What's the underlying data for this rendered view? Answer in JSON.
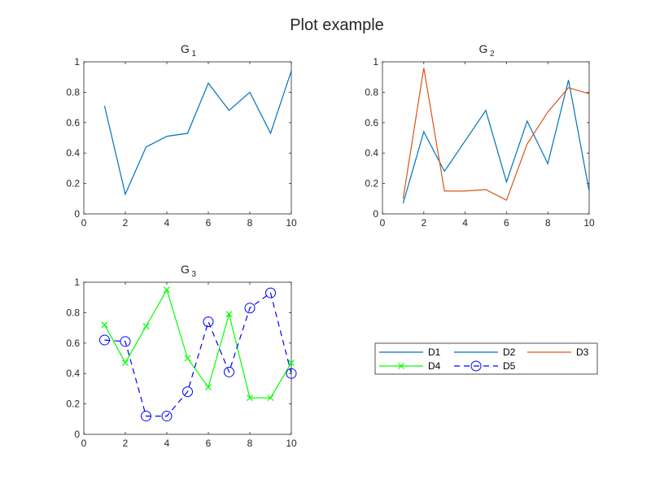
{
  "figure": {
    "title": "Plot example"
  },
  "legend": {
    "placement": "lower-right",
    "columns": 3,
    "entries": [
      {
        "label": "D1",
        "color": "#0072BD",
        "line": "solid",
        "marker": "none"
      },
      {
        "label": "D2",
        "color": "#0072BD",
        "line": "solid",
        "marker": "none"
      },
      {
        "label": "D3",
        "color": "#D95319",
        "line": "solid",
        "marker": "none"
      },
      {
        "label": "D4",
        "color": "#00FF00",
        "line": "solid",
        "marker": "x"
      },
      {
        "label": "D5",
        "color": "#0000FF",
        "line": "dashed",
        "marker": "o"
      }
    ]
  },
  "chart_data": [
    {
      "type": "line",
      "title": "G",
      "title_sub": "1",
      "xlim": [
        0,
        10
      ],
      "ylim": [
        0,
        1
      ],
      "xticks": [
        "0",
        "2",
        "4",
        "6",
        "8",
        "10"
      ],
      "yticks": [
        "0",
        "0.2",
        "0.4",
        "0.6",
        "0.8",
        "1"
      ],
      "grid": false,
      "series": [
        {
          "name": "D1",
          "color": "#0072BD",
          "dash": "none",
          "marker": "none",
          "x": [
            1,
            2,
            3,
            4,
            5,
            6,
            7,
            8,
            9,
            10
          ],
          "y": [
            0.71,
            0.13,
            0.44,
            0.51,
            0.53,
            0.86,
            0.68,
            0.8,
            0.53,
            0.94
          ]
        }
      ]
    },
    {
      "type": "line",
      "title": "G",
      "title_sub": "2",
      "xlim": [
        0,
        10
      ],
      "ylim": [
        0,
        1
      ],
      "xticks": [
        "0",
        "2",
        "4",
        "6",
        "8",
        "10"
      ],
      "yticks": [
        "0",
        "0.2",
        "0.4",
        "0.6",
        "0.8",
        "1"
      ],
      "grid": false,
      "series": [
        {
          "name": "D2",
          "color": "#0072BD",
          "dash": "none",
          "marker": "none",
          "x": [
            1,
            2,
            3,
            4,
            5,
            6,
            7,
            8,
            9,
            10
          ],
          "y": [
            0.07,
            0.54,
            0.28,
            0.48,
            0.68,
            0.21,
            0.61,
            0.33,
            0.88,
            0.15
          ]
        },
        {
          "name": "D3",
          "color": "#D95319",
          "dash": "none",
          "marker": "none",
          "x": [
            1,
            2,
            3,
            4,
            5,
            6,
            7,
            8,
            9,
            10
          ],
          "y": [
            0.1,
            0.96,
            0.15,
            0.15,
            0.16,
            0.09,
            0.46,
            0.67,
            0.83,
            0.79
          ]
        }
      ]
    },
    {
      "type": "line",
      "title": "G",
      "title_sub": "3",
      "xlim": [
        0,
        10
      ],
      "ylim": [
        0,
        1
      ],
      "xticks": [
        "0",
        "2",
        "4",
        "6",
        "8",
        "10"
      ],
      "yticks": [
        "0",
        "0.2",
        "0.4",
        "0.6",
        "0.8",
        "1"
      ],
      "grid": false,
      "series": [
        {
          "name": "D4",
          "color": "#00FF00",
          "dash": "none",
          "marker": "x",
          "x": [
            1,
            2,
            3,
            4,
            5,
            6,
            7,
            8,
            9,
            10
          ],
          "y": [
            0.72,
            0.47,
            0.71,
            0.95,
            0.5,
            0.31,
            0.79,
            0.24,
            0.24,
            0.47
          ]
        },
        {
          "name": "D5",
          "color": "#0000FF",
          "dash": "dashed",
          "marker": "o",
          "x": [
            1,
            2,
            3,
            4,
            5,
            6,
            7,
            8,
            9,
            10
          ],
          "y": [
            0.62,
            0.61,
            0.12,
            0.12,
            0.28,
            0.74,
            0.41,
            0.83,
            0.93,
            0.4
          ]
        }
      ]
    }
  ]
}
